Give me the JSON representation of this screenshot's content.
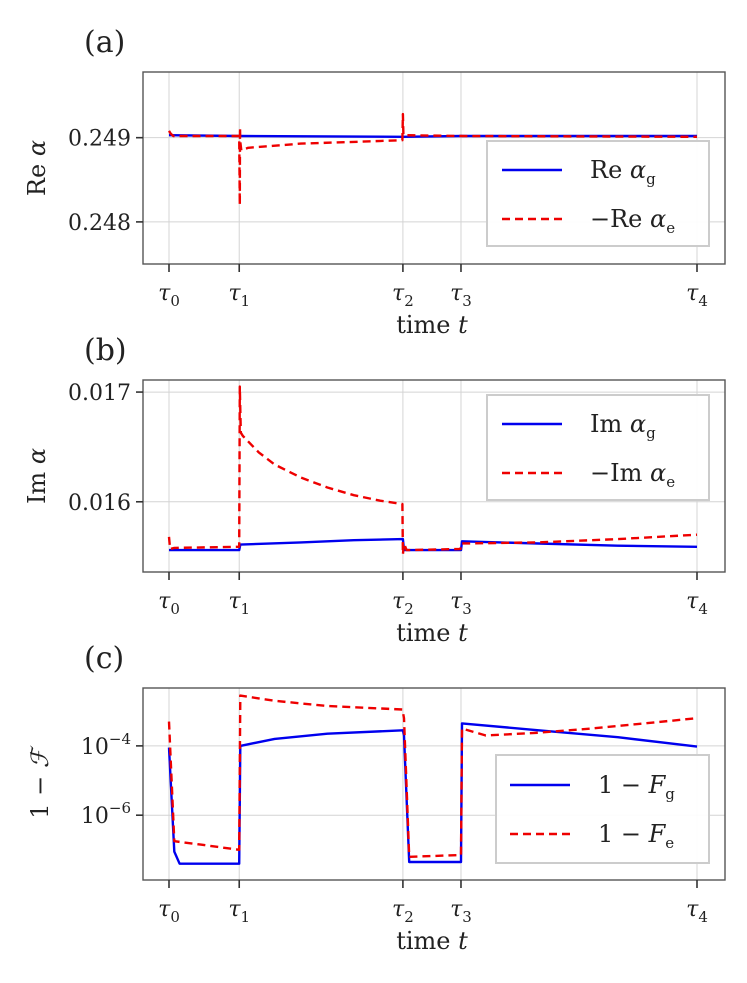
{
  "figure": {
    "panels": [
      {
        "id": "a",
        "label": "(a)"
      },
      {
        "id": "b",
        "label": "(b)"
      },
      {
        "id": "c",
        "label": "(c)"
      }
    ]
  },
  "chart_data": [
    {
      "panel": "(a)",
      "type": "line",
      "ylabel": "Re α",
      "xlabel": "time t",
      "x_ticks": [
        "τ0",
        "τ1",
        "τ2",
        "τ3",
        "τ4"
      ],
      "x_tick_values": [
        0,
        0.133,
        0.443,
        0.553,
        1.0
      ],
      "ylim": [
        0.2475,
        0.24978
      ],
      "y_ticks": [
        {
          "value": 0.248,
          "label": "0.248"
        },
        {
          "value": 0.249,
          "label": "0.249"
        }
      ],
      "grid": true,
      "legend_position": "lower-right",
      "series": [
        {
          "name": "Re αg",
          "legend": {
            "main": "Re α",
            "sub": "g"
          },
          "style": "solid",
          "color": "#0000ee",
          "points": [
            [
              0,
              0.24903
            ],
            [
              0.133,
              0.24902
            ],
            [
              0.443,
              0.24901
            ],
            [
              0.553,
              0.24902
            ],
            [
              1.0,
              0.24902
            ]
          ]
        },
        {
          "name": "−Re αe",
          "legend": {
            "main": "−Re α",
            "sub": "e"
          },
          "style": "dashed",
          "color": "#ee0000",
          "points": [
            [
              0,
              0.24908
            ],
            [
              0.003,
              0.24905
            ],
            [
              0.008,
              0.24902
            ],
            [
              0.133,
              0.24902
            ],
            [
              0.134,
              0.2482
            ],
            [
              0.1345,
              0.24912
            ],
            [
              0.135,
              0.24895
            ],
            [
              0.137,
              0.24885
            ],
            [
              0.15,
              0.24888
            ],
            [
              0.25,
              0.24893
            ],
            [
              0.35,
              0.24895
            ],
            [
              0.442,
              0.24897
            ],
            [
              0.443,
              0.24928
            ],
            [
              0.444,
              0.24903
            ],
            [
              0.553,
              0.24902
            ],
            [
              1.0,
              0.24901
            ]
          ]
        }
      ]
    },
    {
      "panel": "(b)",
      "type": "line",
      "ylabel": "Im α",
      "xlabel": "time t",
      "x_ticks": [
        "τ0",
        "τ1",
        "τ2",
        "τ3",
        "τ4"
      ],
      "x_tick_values": [
        0,
        0.133,
        0.443,
        0.553,
        1.0
      ],
      "ylim": [
        0.01536,
        0.01711
      ],
      "y_ticks": [
        {
          "value": 0.016,
          "label": "0.016"
        },
        {
          "value": 0.017,
          "label": "0.017"
        }
      ],
      "grid": true,
      "legend_position": "upper-right",
      "series": [
        {
          "name": "Im αg",
          "legend": {
            "main": "Im α",
            "sub": "g"
          },
          "style": "solid",
          "color": "#0000ee",
          "points": [
            [
              0,
              0.01556
            ],
            [
              0.133,
              0.01556
            ],
            [
              0.135,
              0.01561
            ],
            [
              0.25,
              0.01563
            ],
            [
              0.35,
              0.01565
            ],
            [
              0.443,
              0.01566
            ],
            [
              0.445,
              0.01556
            ],
            [
              0.553,
              0.01556
            ],
            [
              0.555,
              0.01564
            ],
            [
              0.7,
              0.01562
            ],
            [
              0.85,
              0.0156
            ],
            [
              1.0,
              0.01559
            ]
          ]
        },
        {
          "name": "−Im αe",
          "legend": {
            "main": "−Im α",
            "sub": "e"
          },
          "style": "dashed",
          "color": "#ee0000",
          "points": [
            [
              0,
              0.01568
            ],
            [
              0.002,
              0.01557
            ],
            [
              0.01,
              0.01558
            ],
            [
              0.133,
              0.01559
            ],
            [
              0.134,
              0.01705
            ],
            [
              0.136,
              0.01663
            ],
            [
              0.14,
              0.0166
            ],
            [
              0.17,
              0.01645
            ],
            [
              0.2,
              0.01634
            ],
            [
              0.25,
              0.01622
            ],
            [
              0.3,
              0.01613
            ],
            [
              0.35,
              0.01606
            ],
            [
              0.4,
              0.01601
            ],
            [
              0.442,
              0.01598
            ],
            [
              0.443,
              0.01552
            ],
            [
              0.445,
              0.01562
            ],
            [
              0.45,
              0.01556
            ],
            [
              0.552,
              0.01557
            ],
            [
              0.553,
              0.01562
            ],
            [
              0.7,
              0.01563
            ],
            [
              0.85,
              0.01566
            ],
            [
              1.0,
              0.0157
            ]
          ]
        }
      ]
    },
    {
      "panel": "(c)",
      "type": "line",
      "yscale": "log",
      "ylabel": "1 − F",
      "xlabel": "time t",
      "x_ticks": [
        "τ0",
        "τ1",
        "τ2",
        "τ3",
        "τ4"
      ],
      "x_tick_values": [
        0,
        0.133,
        0.443,
        0.553,
        1.0
      ],
      "ylim_log10": [
        -7.87,
        -2.33
      ],
      "y_ticks": [
        {
          "value_log10": -6,
          "label": "10",
          "exp": "−6"
        },
        {
          "value_log10": -4,
          "label": "10",
          "exp": "−4"
        }
      ],
      "grid": true,
      "legend_position": "lower-right",
      "series": [
        {
          "name": "1 − Fg",
          "legend": {
            "main": "1 − F",
            "sub": "g"
          },
          "style": "solid",
          "color": "#0000ee",
          "points_log10": [
            [
              0,
              -4.05
            ],
            [
              0.01,
              -7.05
            ],
            [
              0.02,
              -7.4
            ],
            [
              0.133,
              -7.4
            ],
            [
              0.135,
              -4.0
            ],
            [
              0.2,
              -3.8
            ],
            [
              0.3,
              -3.65
            ],
            [
              0.443,
              -3.55
            ],
            [
              0.445,
              -3.7
            ],
            [
              0.455,
              -7.35
            ],
            [
              0.553,
              -7.35
            ],
            [
              0.555,
              -3.35
            ],
            [
              0.7,
              -3.55
            ],
            [
              0.85,
              -3.75
            ],
            [
              1.0,
              -4.02
            ]
          ]
        },
        {
          "name": "1 − Fe",
          "legend": {
            "main": "1 − F",
            "sub": "e"
          },
          "style": "dashed",
          "color": "#ee0000",
          "points_log10": [
            [
              0,
              -3.3
            ],
            [
              0.01,
              -6.75
            ],
            [
              0.06,
              -6.85
            ],
            [
              0.133,
              -7.0
            ],
            [
              0.135,
              -2.55
            ],
            [
              0.2,
              -2.7
            ],
            [
              0.3,
              -2.85
            ],
            [
              0.442,
              -2.95
            ],
            [
              0.445,
              -3.2
            ],
            [
              0.455,
              -7.2
            ],
            [
              0.553,
              -7.15
            ],
            [
              0.555,
              -3.5
            ],
            [
              0.6,
              -3.7
            ],
            [
              0.7,
              -3.62
            ],
            [
              0.8,
              -3.5
            ],
            [
              0.9,
              -3.35
            ],
            [
              1.0,
              -3.2
            ]
          ]
        }
      ]
    }
  ]
}
